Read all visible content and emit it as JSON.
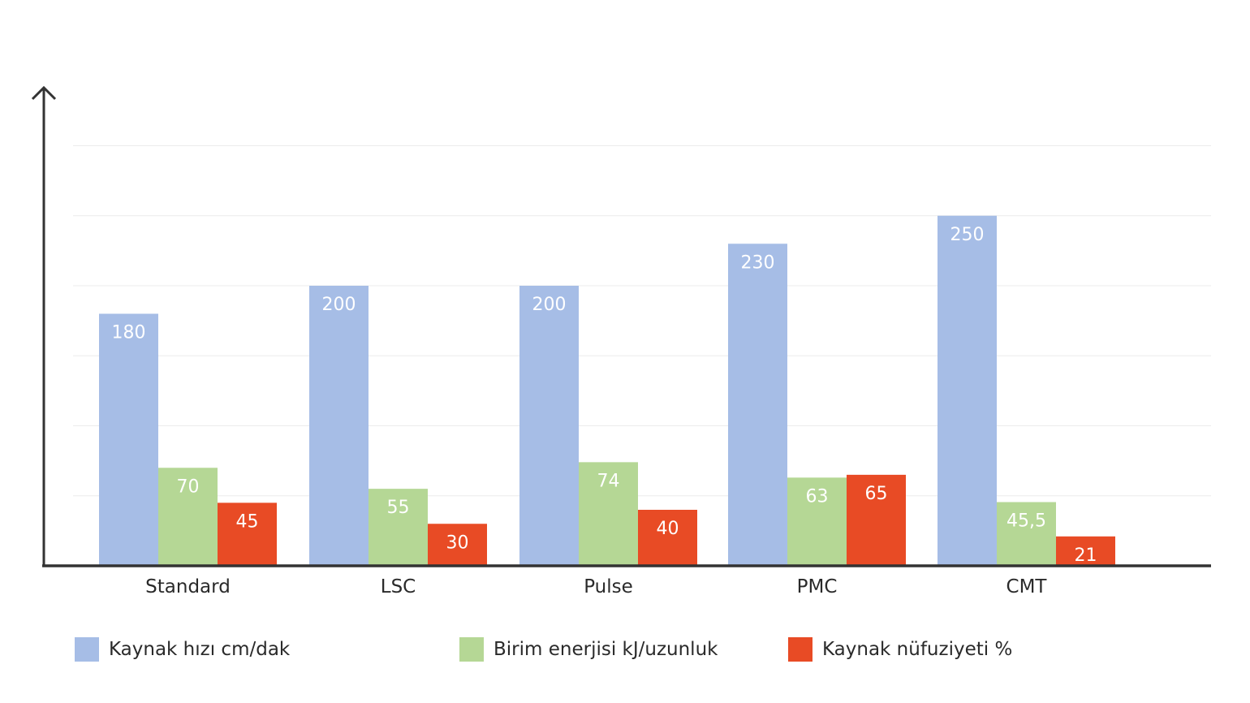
{
  "chart_data": {
    "type": "bar",
    "categories": [
      "Standard",
      "LSC",
      "Pulse",
      "PMC",
      "CMT"
    ],
    "series": [
      {
        "name": "Kaynak hızı cm/dak",
        "color": "#a6bde6",
        "values": [
          180,
          200,
          200,
          230,
          250
        ],
        "labels": [
          "180",
          "200",
          "200",
          "230",
          "250"
        ]
      },
      {
        "name": "Birim enerjisi kJ/uzunluk",
        "color": "#b5d795",
        "values": [
          70,
          55,
          74,
          63,
          45.5
        ],
        "labels": [
          "70",
          "55",
          "74",
          "63",
          "45,5"
        ]
      },
      {
        "name": "Kaynak nüfuziyeti %",
        "color": "#e84b25",
        "values": [
          45,
          30,
          40,
          65,
          21
        ],
        "labels": [
          "45",
          "30",
          "40",
          "65",
          "21"
        ]
      }
    ],
    "title": "",
    "xlabel": "",
    "ylabel": "",
    "ylim": [
      0,
      300
    ],
    "grid": true,
    "legend_position": "bottom"
  }
}
